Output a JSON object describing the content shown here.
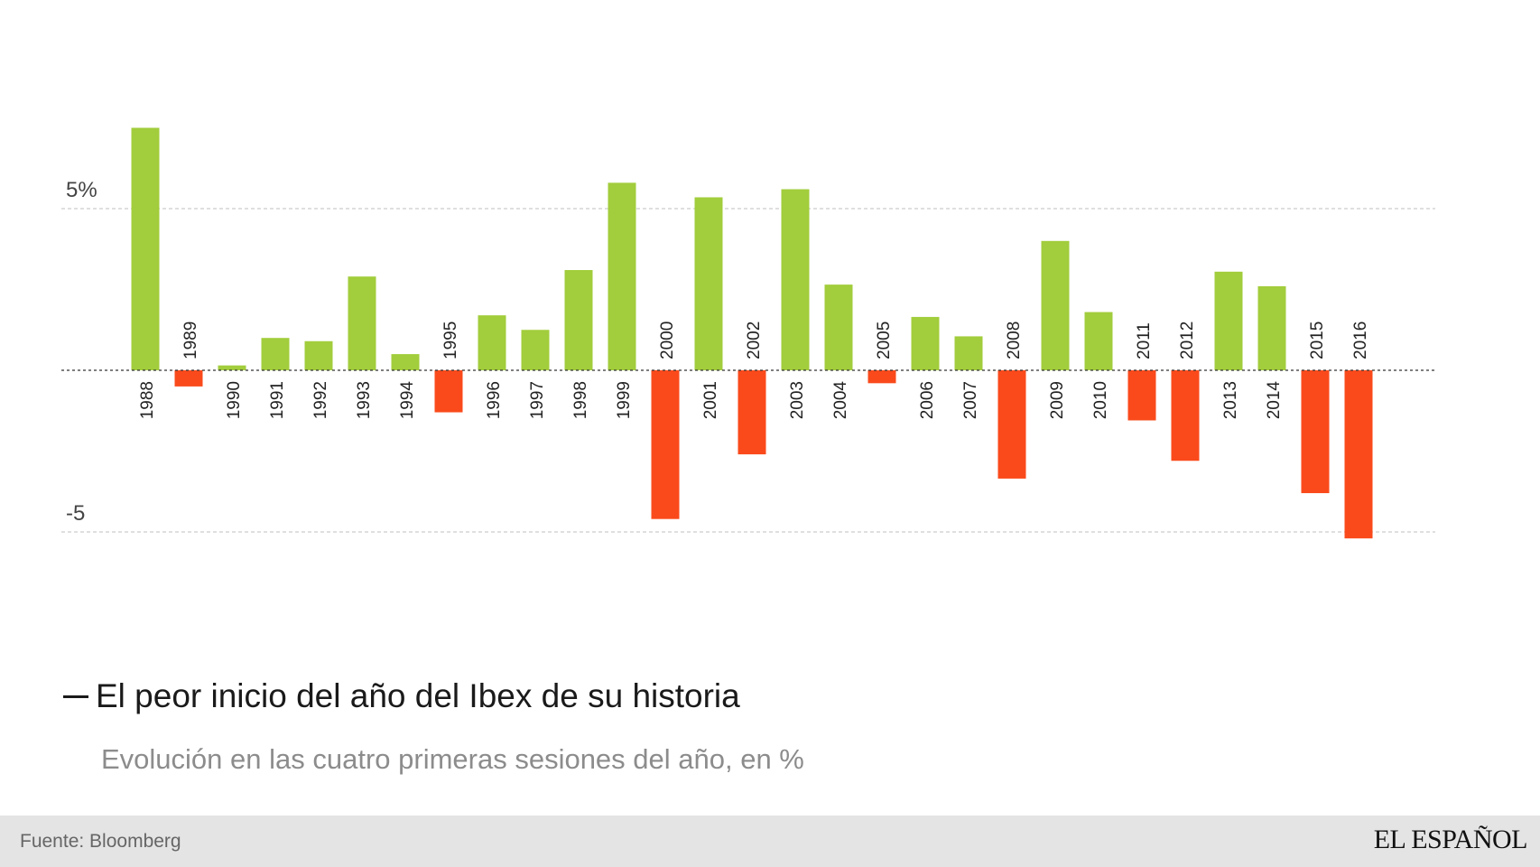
{
  "heading": "El peor inicio del año del Ibex de su historia",
  "subheading": "Evolución en las cuatro primeras sesiones del año, en %",
  "footer": {
    "source": "Fuente: Bloomberg",
    "brand": "EL ESPAÑOL"
  },
  "colors": {
    "positive": "#a2cd3c",
    "negative": "#fa4a1b",
    "grid": "#cccccc",
    "zero_line": "#333333"
  },
  "chart_data": {
    "type": "bar",
    "ylim": [
      -5.5,
      7.8
    ],
    "grid": true,
    "y_ticks": [
      {
        "value": 5,
        "label": "5%"
      },
      {
        "value": -5,
        "label": "-5"
      }
    ],
    "categories": [
      "1988",
      "1989",
      "1990",
      "1991",
      "1992",
      "1993",
      "1994",
      "1995",
      "1996",
      "1997",
      "1998",
      "1999",
      "2000",
      "2001",
      "2002",
      "2003",
      "2004",
      "2005",
      "2006",
      "2007",
      "2008",
      "2009",
      "2010",
      "2011",
      "2012",
      "2013",
      "2014",
      "2015",
      "2016"
    ],
    "values": [
      7.5,
      -0.5,
      0.15,
      1.0,
      0.9,
      2.9,
      0.5,
      -1.3,
      1.7,
      1.25,
      3.1,
      5.8,
      -4.6,
      5.35,
      -2.6,
      5.6,
      2.65,
      -0.4,
      1.65,
      1.05,
      -3.35,
      4.0,
      1.8,
      -1.55,
      -2.8,
      3.05,
      2.6,
      -3.8,
      -5.2
    ]
  }
}
